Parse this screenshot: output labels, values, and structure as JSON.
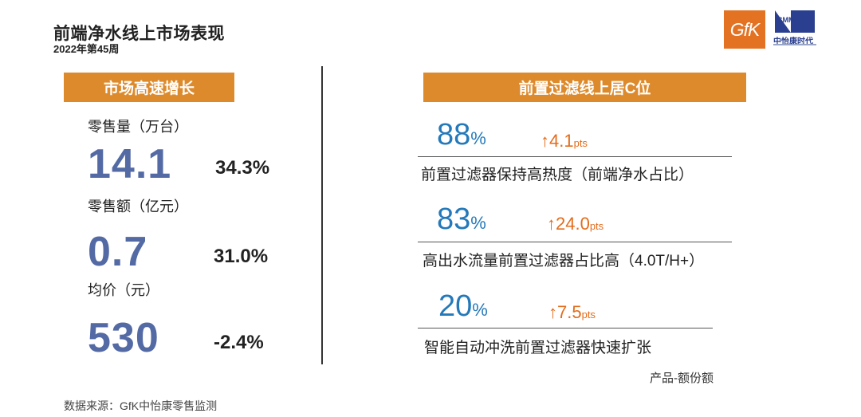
{
  "header": {
    "title": "前端净水线上市场表现",
    "subtitle": "2022年第45周"
  },
  "logos": {
    "gfk_text": "GfK",
    "cmm_text": "CMM",
    "cmm_name": "中怡康时代"
  },
  "left_panel": {
    "banner": "市场高速增长",
    "metrics": [
      {
        "label": "零售量（万台）",
        "value": "14.1",
        "change": "34.3%"
      },
      {
        "label": "零售额（亿元）",
        "value": "0.7",
        "change": "31.0%"
      },
      {
        "label": "均价（元）",
        "value": "530",
        "change": "-2.4%"
      }
    ]
  },
  "right_panel": {
    "banner": "前置过滤线上居C位",
    "items": [
      {
        "pct": "88",
        "pct_unit": "%",
        "arrow": "↑",
        "change": "4.1",
        "change_unit": "pts",
        "desc": "前置过滤器保持高热度（前端净水占比）"
      },
      {
        "pct": "83",
        "pct_unit": "%",
        "arrow": "↑",
        "change": "24.0",
        "change_unit": "pts",
        "desc": "高出水流量前置过滤器占比高（4.0T/H+）"
      },
      {
        "pct": "20",
        "pct_unit": "%",
        "arrow": "↑",
        "change": "7.5",
        "change_unit": "pts",
        "desc": "智能自动冲洗前置过滤器快速扩张"
      }
    ],
    "note": "产品-额份额"
  },
  "footer": {
    "source": "数据来源：GfK中怡康零售监测"
  },
  "colors": {
    "accent_orange": "#dd8a2c",
    "value_blue": "#536aa5",
    "share_blue": "#2479ba",
    "change_orange": "#e36c1b"
  }
}
